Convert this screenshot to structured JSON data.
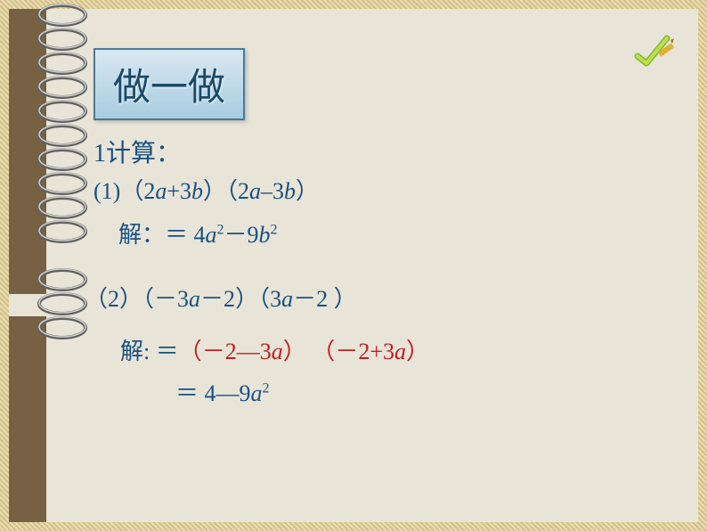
{
  "title": "做一做",
  "icons": {
    "pencil_semantic": "pencil-checkmark-icon"
  },
  "spiral_binding": {
    "count": 13,
    "top_start": -10,
    "spacing": 27,
    "gap_indices": [
      10
    ],
    "ring_color": "#606060",
    "highlight_color": "#d0d0d0"
  },
  "colors": {
    "text_main": "#1a5080",
    "text_red": "#c02020",
    "bg_paper": "#e8e4d8",
    "border_dotted": "#d4c088",
    "left_strip": "#786044",
    "title_border": "#4a7a9a",
    "title_grad_top": "#d8e8f0",
    "title_grad_bottom": "#a8cce0"
  },
  "typography": {
    "title_fontsize": 42,
    "body_fontsize": 26,
    "sup_fontsize": 16,
    "title_font": "KaiTi",
    "body_font": "Times New Roman / SimSun"
  },
  "content": {
    "heading": {
      "label": "1",
      "text": "计算："
    },
    "problem1": {
      "label": "(1)",
      "expr_open1": "（",
      "term1a": "2",
      "var1a": "a",
      "plus1": "+3",
      "var1b": "b",
      "expr_close1": "）",
      "expr_open2": "（",
      "term2a": "2",
      "var2a": "a",
      "minus1": "–3",
      "var2b": "b",
      "expr_close2": "）"
    },
    "solution1": {
      "label": "解：",
      "eq": "＝ ",
      "t1": "4",
      "v1": "a",
      "p1": "2",
      "minus": "－9",
      "v2": "b",
      "p2": "2"
    },
    "problem2": {
      "label": "（2）",
      "open1": "（",
      "neg1": "－",
      "t1": "3",
      "v1": "a",
      "minus1": "－2",
      "close1": "）",
      "open2": "（",
      "t2": "3",
      "v2": "a",
      "minus2": "－2 ",
      "close2": "）"
    },
    "solution2a": {
      "label": "解: ",
      "eq": "＝",
      "open1": "（",
      "neg1": "－",
      "t1": "2—3",
      "v1": "a",
      "close1": "）",
      "open2": "（",
      "neg2": "－",
      "t2": "2+3",
      "v2": "a",
      "close2": "）"
    },
    "solution2b": {
      "eq": "＝ ",
      "t1": "4—9",
      "v1": "a",
      "p1": "2"
    }
  }
}
